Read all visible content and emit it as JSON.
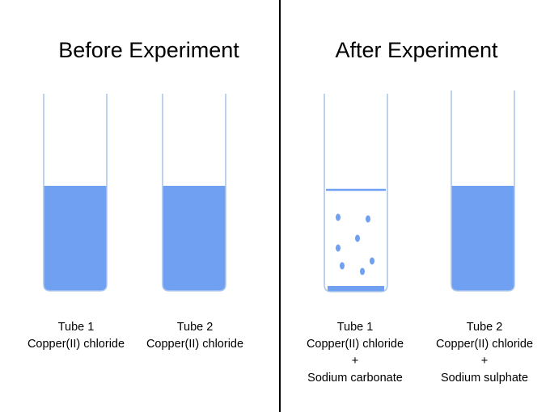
{
  "panels": {
    "before": {
      "title": "Before Experiment",
      "tubes": [
        {
          "name": "Tube 1",
          "contents": "Copper(II) chloride"
        },
        {
          "name": "Tube 2",
          "contents": "Copper(II) chloride"
        }
      ]
    },
    "after": {
      "title": "After Experiment",
      "tubes": [
        {
          "name": "Tube 1",
          "contents": "Copper(II) chloride",
          "plus": "+",
          "added": "Sodium carbonate"
        },
        {
          "name": "Tube 2",
          "contents": "Copper(II) chloride",
          "plus": "+",
          "added": "Sodium sulphate"
        }
      ]
    }
  },
  "colors": {
    "solution": "#6fa0f2",
    "tube_outline": "#a9c4ec",
    "divider": "#000000",
    "precipitate": "#6fa0f2"
  }
}
